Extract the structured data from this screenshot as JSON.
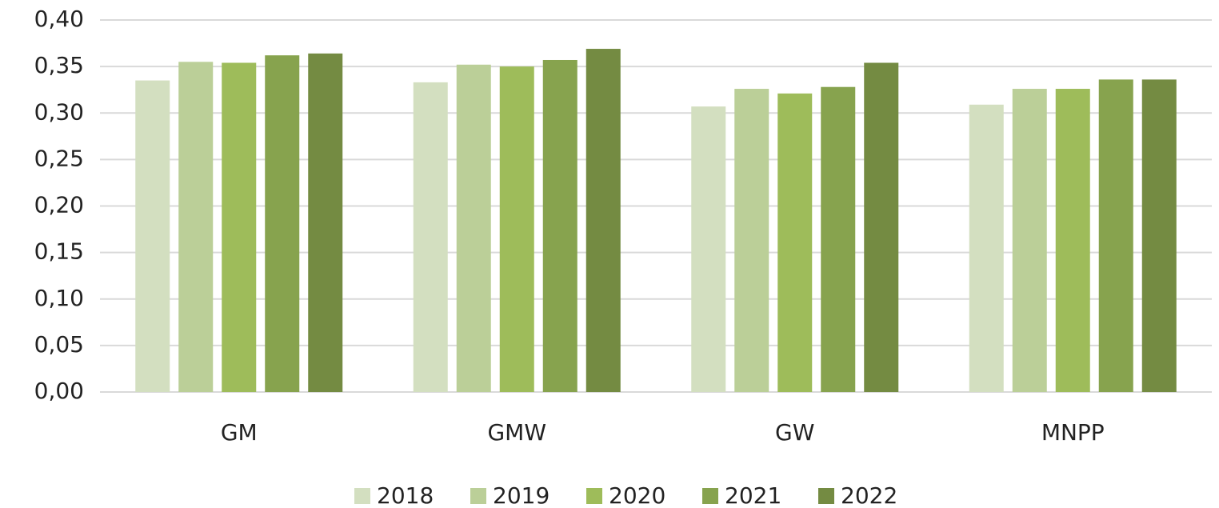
{
  "chart_data": {
    "type": "bar",
    "categories": [
      "GM",
      "GMW",
      "GW",
      "MNPP"
    ],
    "series": [
      {
        "name": "2018",
        "color": "#d3dfc0",
        "values": [
          0.335,
          0.333,
          0.307,
          0.309
        ]
      },
      {
        "name": "2019",
        "color": "#bbcf98",
        "values": [
          0.355,
          0.352,
          0.326,
          0.326
        ]
      },
      {
        "name": "2020",
        "color": "#9ebc5a",
        "values": [
          0.354,
          0.35,
          0.321,
          0.326
        ]
      },
      {
        "name": "2021",
        "color": "#87a34e",
        "values": [
          0.362,
          0.357,
          0.328,
          0.336
        ]
      },
      {
        "name": "2022",
        "color": "#748b42",
        "values": [
          0.364,
          0.369,
          0.354,
          0.336
        ]
      }
    ],
    "ylim": [
      0,
      0.4
    ],
    "yticks": [
      {
        "value": 0,
        "label": "0,00"
      },
      {
        "value": 0.05,
        "label": "0,05"
      },
      {
        "value": 0.1,
        "label": "0,10"
      },
      {
        "value": 0.15,
        "label": "0,15"
      },
      {
        "value": 0.2,
        "label": "0,20"
      },
      {
        "value": 0.25,
        "label": "0,25"
      },
      {
        "value": 0.3,
        "label": "0,30"
      },
      {
        "value": 0.35,
        "label": "0,35"
      },
      {
        "value": 0.4,
        "label": "0,40"
      }
    ],
    "grid": true,
    "legend": "bottom"
  }
}
